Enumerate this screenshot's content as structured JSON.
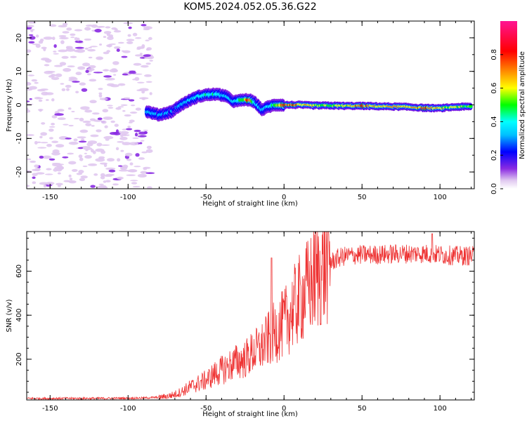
{
  "figure": {
    "title": "KOM5.2024.052.05.36.G22"
  },
  "chart_data": [
    {
      "type": "heatmap",
      "xlabel": "Height of straight line (km)",
      "ylabel": "Frequency (Hz)",
      "xlim": [
        -165,
        122
      ],
      "ylim": [
        -25,
        25
      ],
      "xticks": [
        -150,
        -100,
        -50,
        0,
        50,
        100
      ],
      "yticks": [
        -20,
        -10,
        0,
        10,
        20
      ],
      "colorbar": {
        "label": "Normalized spectral amplitude",
        "range": [
          0,
          1
        ],
        "ticks": [
          "0.0",
          "0.2",
          "0.4",
          "0.6",
          "0.8"
        ],
        "colormap": [
          "#e0c8f0",
          "#8a2be2",
          "#0000ff",
          "#00bfff",
          "#00ffff",
          "#00ff00",
          "#ffff00",
          "#ff8c00",
          "#ff0000",
          "#ff1493"
        ]
      },
      "ridge": {
        "x": [
          -88,
          -80,
          -72,
          -66,
          -60,
          -55,
          -50,
          -44,
          -38,
          -32,
          -26,
          -22,
          -18,
          -14,
          -10,
          -5,
          0,
          10,
          20,
          30,
          40,
          50,
          60,
          70,
          80,
          90,
          100,
          110,
          120
        ],
        "freq": [
          -2,
          -3,
          -2,
          0,
          1.5,
          2.5,
          3,
          3.2,
          2.8,
          1,
          1.5,
          1.5,
          0.5,
          -1.5,
          -0.5,
          0,
          0,
          0,
          -0.2,
          -0.2,
          -0.3,
          -0.3,
          -0.4,
          -0.5,
          -0.6,
          -0.9,
          -1.0,
          -0.6,
          -0.5
        ],
        "amplitude": [
          0.3,
          0.35,
          0.3,
          0.35,
          0.4,
          0.45,
          0.5,
          0.5,
          0.45,
          0.4,
          0.6,
          0.95,
          0.45,
          0.35,
          0.45,
          0.55,
          0.9,
          0.8,
          0.7,
          0.65,
          0.7,
          0.85,
          0.75,
          0.8,
          0.8,
          0.85,
          0.75,
          0.65,
          0.6
        ]
      }
    },
    {
      "type": "line",
      "xlabel": "Height of straight line (km)",
      "ylabel": "SNR (v/v)",
      "xlim": [
        -165,
        122
      ],
      "ylim": [
        15,
        780
      ],
      "xticks": [
        -150,
        -100,
        -50,
        0,
        50,
        100
      ],
      "yticks": [
        200,
        400,
        600
      ],
      "color": "#ee3333",
      "series": [
        {
          "x": [
            -165,
            -150,
            -120,
            -100,
            -90,
            -80,
            -75,
            -70,
            -65,
            -60,
            -55,
            -50,
            -45,
            -40,
            -35,
            -30,
            -25,
            -20,
            -15,
            -10,
            -5,
            0,
            5,
            10,
            15,
            20,
            25,
            30,
            35,
            40,
            50,
            60,
            70,
            80,
            90,
            100,
            110,
            122
          ],
          "y": [
            22,
            22,
            22,
            23,
            24,
            27,
            32,
            40,
            55,
            75,
            90,
            105,
            130,
            150,
            170,
            190,
            200,
            230,
            250,
            290,
            330,
            360,
            420,
            470,
            520,
            570,
            610,
            640,
            660,
            670,
            675,
            675,
            678,
            680,
            680,
            675,
            670,
            670
          ]
        }
      ]
    }
  ]
}
